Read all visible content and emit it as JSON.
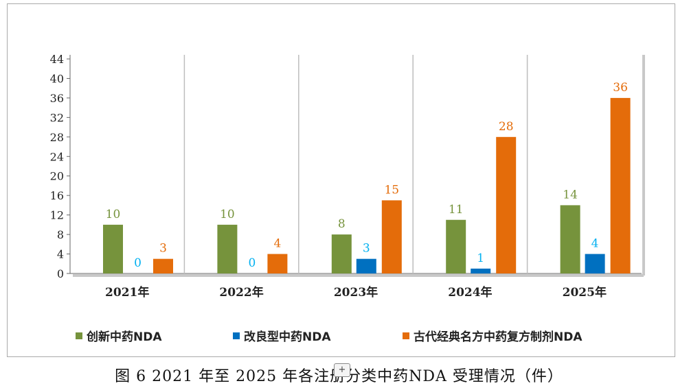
{
  "chart_data": {
    "type": "bar",
    "categories": [
      "2021年",
      "2022年",
      "2023年",
      "2024年",
      "2025年"
    ],
    "series": [
      {
        "name": "创新中药NDA",
        "color": "#76933c",
        "label_color": "#76933c",
        "values": [
          10,
          10,
          8,
          11,
          14
        ]
      },
      {
        "name": "改良型中药NDA",
        "color": "#0070c0",
        "label_color": "#00b0f0",
        "values": [
          0,
          0,
          3,
          1,
          4
        ]
      },
      {
        "name": "古代经典名方中药复方制剂NDA",
        "color": "#e46c0a",
        "label_color": "#e46c0a",
        "values": [
          3,
          4,
          15,
          28,
          36
        ]
      }
    ],
    "yticks": [
      0,
      4,
      8,
      12,
      16,
      20,
      24,
      28,
      32,
      36,
      40,
      44
    ],
    "ylim": [
      0,
      44
    ],
    "legend_position": "bottom",
    "grid": false
  },
  "caption": "图 6   2021 年至 2025 年各注册分类中药NDA 受理情况（件）",
  "cursor_glyph": "+"
}
